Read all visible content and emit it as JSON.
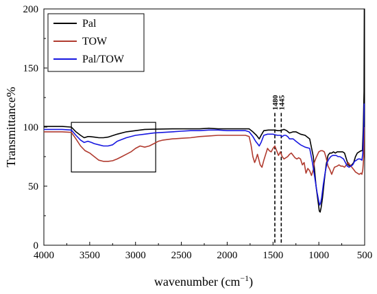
{
  "chart_data": {
    "type": "line",
    "xlabel_main": "wavenumber (cm",
    "xlabel_sup": "−1",
    "xlabel_close": ")",
    "ylabel": "Transmittance%",
    "xlim": [
      4000,
      500
    ],
    "ylim": [
      0,
      200
    ],
    "x_ticks": [
      4000,
      3500,
      3000,
      2500,
      2000,
      1500,
      1000,
      500
    ],
    "y_ticks": [
      0,
      50,
      100,
      150,
      200
    ],
    "legend_position": "top-left",
    "annotations": [
      {
        "label": "1480",
        "x": 1480,
        "y_top": 112
      },
      {
        "label": "1445",
        "x": 1410,
        "y_top": 112
      }
    ],
    "highlight_box": {
      "x": [
        3700,
        2780
      ],
      "y": [
        62,
        104
      ]
    },
    "series": [
      {
        "name": "Pal",
        "color": "#000000",
        "points": [
          [
            4000,
            100.5
          ],
          [
            3800,
            100.5
          ],
          [
            3700,
            100
          ],
          [
            3650,
            96
          ],
          [
            3600,
            93
          ],
          [
            3560,
            91
          ],
          [
            3520,
            92
          ],
          [
            3500,
            92
          ],
          [
            3450,
            91.5
          ],
          [
            3400,
            91
          ],
          [
            3350,
            91
          ],
          [
            3300,
            91.5
          ],
          [
            3200,
            94
          ],
          [
            3100,
            96
          ],
          [
            3000,
            97
          ],
          [
            2900,
            98
          ],
          [
            2800,
            98.2
          ],
          [
            2600,
            98.5
          ],
          [
            2500,
            98.5
          ],
          [
            2300,
            98.5
          ],
          [
            2200,
            99
          ],
          [
            2100,
            98.5
          ],
          [
            2000,
            98.5
          ],
          [
            1900,
            98.5
          ],
          [
            1800,
            98.5
          ],
          [
            1760,
            98.5
          ],
          [
            1720,
            96
          ],
          [
            1680,
            93
          ],
          [
            1650,
            90
          ],
          [
            1630,
            93
          ],
          [
            1600,
            97
          ],
          [
            1550,
            97.5
          ],
          [
            1480,
            97.5
          ],
          [
            1450,
            97
          ],
          [
            1420,
            97
          ],
          [
            1400,
            97.5
          ],
          [
            1380,
            98
          ],
          [
            1350,
            97
          ],
          [
            1320,
            95
          ],
          [
            1280,
            96
          ],
          [
            1250,
            96
          ],
          [
            1200,
            94
          ],
          [
            1150,
            93
          ],
          [
            1100,
            90
          ],
          [
            1060,
            75
          ],
          [
            1030,
            50
          ],
          [
            1010,
            38
          ],
          [
            995,
            29
          ],
          [
            985,
            28
          ],
          [
            975,
            32
          ],
          [
            960,
            40
          ],
          [
            940,
            55
          ],
          [
            920,
            68
          ],
          [
            900,
            76
          ],
          [
            880,
            78
          ],
          [
            860,
            78
          ],
          [
            840,
            79
          ],
          [
            820,
            78
          ],
          [
            800,
            79
          ],
          [
            780,
            79
          ],
          [
            760,
            79
          ],
          [
            740,
            79
          ],
          [
            720,
            78
          ],
          [
            700,
            73
          ],
          [
            680,
            68
          ],
          [
            660,
            67
          ],
          [
            640,
            68
          ],
          [
            620,
            70
          ],
          [
            600,
            75
          ],
          [
            580,
            78
          ],
          [
            560,
            79
          ],
          [
            540,
            80
          ],
          [
            525,
            80
          ],
          [
            515,
            100
          ],
          [
            507,
            130
          ],
          [
            504,
            200
          ]
        ]
      },
      {
        "name": "TOW",
        "color": "#b03a2e",
        "points": [
          [
            4000,
            96
          ],
          [
            3800,
            96
          ],
          [
            3700,
            95.5
          ],
          [
            3650,
            90
          ],
          [
            3600,
            84
          ],
          [
            3550,
            80
          ],
          [
            3500,
            78
          ],
          [
            3450,
            75
          ],
          [
            3400,
            72
          ],
          [
            3350,
            71
          ],
          [
            3300,
            71
          ],
          [
            3250,
            71.5
          ],
          [
            3200,
            73
          ],
          [
            3150,
            75
          ],
          [
            3100,
            77
          ],
          [
            3050,
            79
          ],
          [
            3000,
            82
          ],
          [
            2950,
            84
          ],
          [
            2900,
            83
          ],
          [
            2850,
            84
          ],
          [
            2800,
            86
          ],
          [
            2750,
            88
          ],
          [
            2700,
            89
          ],
          [
            2600,
            90
          ],
          [
            2500,
            90.5
          ],
          [
            2400,
            91
          ],
          [
            2300,
            92
          ],
          [
            2200,
            92.5
          ],
          [
            2100,
            93
          ],
          [
            2000,
            93
          ],
          [
            1900,
            93
          ],
          [
            1800,
            93
          ],
          [
            1760,
            92
          ],
          [
            1740,
            85
          ],
          [
            1720,
            75
          ],
          [
            1700,
            70
          ],
          [
            1690,
            72
          ],
          [
            1670,
            77
          ],
          [
            1640,
            68
          ],
          [
            1620,
            66
          ],
          [
            1600,
            72
          ],
          [
            1580,
            77
          ],
          [
            1560,
            82
          ],
          [
            1540,
            80
          ],
          [
            1520,
            79
          ],
          [
            1500,
            82
          ],
          [
            1480,
            84
          ],
          [
            1460,
            80
          ],
          [
            1440,
            76
          ],
          [
            1420,
            79
          ],
          [
            1400,
            75
          ],
          [
            1380,
            73
          ],
          [
            1360,
            74
          ],
          [
            1340,
            75
          ],
          [
            1320,
            77
          ],
          [
            1300,
            78
          ],
          [
            1280,
            76
          ],
          [
            1260,
            74
          ],
          [
            1240,
            73
          ],
          [
            1220,
            74
          ],
          [
            1200,
            73
          ],
          [
            1180,
            68
          ],
          [
            1160,
            70
          ],
          [
            1140,
            61
          ],
          [
            1120,
            65
          ],
          [
            1100,
            63
          ],
          [
            1080,
            59
          ],
          [
            1060,
            64
          ],
          [
            1050,
            70
          ],
          [
            1030,
            74
          ],
          [
            1000,
            79
          ],
          [
            980,
            80
          ],
          [
            960,
            80
          ],
          [
            940,
            79
          ],
          [
            920,
            74
          ],
          [
            900,
            67
          ],
          [
            880,
            64
          ],
          [
            860,
            60
          ],
          [
            850,
            62
          ],
          [
            830,
            66
          ],
          [
            800,
            67
          ],
          [
            780,
            68
          ],
          [
            760,
            67
          ],
          [
            740,
            67
          ],
          [
            720,
            66
          ],
          [
            700,
            68
          ],
          [
            680,
            70
          ],
          [
            660,
            68
          ],
          [
            640,
            66
          ],
          [
            620,
            64
          ],
          [
            600,
            62
          ],
          [
            580,
            61
          ],
          [
            560,
            60
          ],
          [
            540,
            61
          ],
          [
            530,
            60
          ],
          [
            520,
            64
          ],
          [
            510,
            75
          ],
          [
            505,
            100
          ]
        ]
      },
      {
        "name": "Pal/TOW",
        "color": "#1515e0",
        "points": [
          [
            4000,
            98
          ],
          [
            3800,
            98
          ],
          [
            3700,
            97.5
          ],
          [
            3650,
            93
          ],
          [
            3600,
            89
          ],
          [
            3560,
            87
          ],
          [
            3520,
            88
          ],
          [
            3480,
            87
          ],
          [
            3450,
            86
          ],
          [
            3400,
            85
          ],
          [
            3350,
            84
          ],
          [
            3300,
            84
          ],
          [
            3250,
            85
          ],
          [
            3200,
            88
          ],
          [
            3100,
            91
          ],
          [
            3000,
            93
          ],
          [
            2900,
            94
          ],
          [
            2800,
            95
          ],
          [
            2600,
            96
          ],
          [
            2500,
            96.5
          ],
          [
            2400,
            97
          ],
          [
            2300,
            97
          ],
          [
            2200,
            97.5
          ],
          [
            2100,
            97.5
          ],
          [
            2000,
            97
          ],
          [
            1900,
            97
          ],
          [
            1800,
            97
          ],
          [
            1760,
            96
          ],
          [
            1720,
            92
          ],
          [
            1690,
            88
          ],
          [
            1660,
            85
          ],
          [
            1650,
            84
          ],
          [
            1630,
            87
          ],
          [
            1600,
            93
          ],
          [
            1560,
            94
          ],
          [
            1500,
            94
          ],
          [
            1480,
            93.5
          ],
          [
            1450,
            93
          ],
          [
            1420,
            93
          ],
          [
            1400,
            92
          ],
          [
            1380,
            93
          ],
          [
            1360,
            93
          ],
          [
            1340,
            92
          ],
          [
            1320,
            90
          ],
          [
            1300,
            90
          ],
          [
            1280,
            90
          ],
          [
            1250,
            88
          ],
          [
            1200,
            85
          ],
          [
            1150,
            83
          ],
          [
            1100,
            82
          ],
          [
            1070,
            70
          ],
          [
            1040,
            55
          ],
          [
            1020,
            45
          ],
          [
            1000,
            37
          ],
          [
            990,
            34
          ],
          [
            980,
            36
          ],
          [
            970,
            40
          ],
          [
            950,
            52
          ],
          [
            930,
            62
          ],
          [
            910,
            70
          ],
          [
            890,
            73
          ],
          [
            870,
            75
          ],
          [
            850,
            76
          ],
          [
            830,
            76
          ],
          [
            810,
            76
          ],
          [
            790,
            75
          ],
          [
            770,
            75
          ],
          [
            750,
            74
          ],
          [
            730,
            73
          ],
          [
            710,
            70
          ],
          [
            690,
            67
          ],
          [
            670,
            66
          ],
          [
            650,
            67
          ],
          [
            630,
            68
          ],
          [
            610,
            71
          ],
          [
            590,
            72
          ],
          [
            570,
            73
          ],
          [
            550,
            73
          ],
          [
            530,
            72
          ],
          [
            520,
            78
          ],
          [
            510,
            100
          ],
          [
            505,
            120
          ]
        ]
      }
    ]
  }
}
